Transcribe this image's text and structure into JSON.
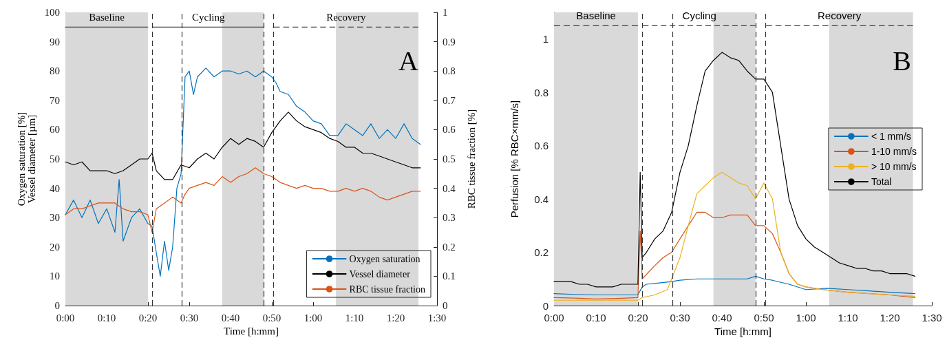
{
  "chart_data": [
    {
      "type": "line",
      "xlabel": "Time [h:mm]",
      "ylabel": "Oxygen saturation [%]\nVessel diameter [µm]",
      "y2label": "RBC tissue fraction [%]",
      "xlim": [
        0,
        1.5
      ],
      "xticks": [
        {
          "value": 0,
          "label": "0:00"
        },
        {
          "value": 0.1667,
          "label": "0:10"
        },
        {
          "value": 0.3333,
          "label": "0:20"
        },
        {
          "value": 0.5,
          "label": "0:30"
        },
        {
          "value": 0.6667,
          "label": "0:40"
        },
        {
          "value": 0.8333,
          "label": "0:50"
        },
        {
          "value": 1,
          "label": "1:00"
        },
        {
          "value": 1.1667,
          "label": "1:10"
        },
        {
          "value": 1.3333,
          "label": "1:20"
        },
        {
          "value": 1.5,
          "label": "1:30"
        }
      ],
      "ylim": [
        0,
        100
      ],
      "yticks": [
        0,
        10,
        20,
        30,
        40,
        50,
        60,
        70,
        80,
        90,
        100
      ],
      "y2lim": [
        0,
        1
      ],
      "y2ticks": [
        0,
        0.1,
        0.2,
        0.3,
        0.4,
        0.5,
        0.6,
        0.7,
        0.8,
        0.9,
        1
      ],
      "legend": "bottom right",
      "bands": [
        {
          "axis": "x",
          "from": 0,
          "to": 0.333,
          "color": "#d9d9d9"
        },
        {
          "axis": "x",
          "from": 0.633,
          "to": 0.8,
          "color": "#d9d9d9"
        },
        {
          "axis": "x",
          "from": 1.092,
          "to": 1.425,
          "color": "#d9d9d9"
        }
      ],
      "ref_lines": [
        {
          "axis": "x",
          "value": 0.353,
          "line_style": "dashed",
          "color": "#333333"
        },
        {
          "axis": "x",
          "value": 0.467,
          "line_style": "dashed",
          "color": "#333333"
        },
        {
          "axis": "x",
          "value": 0.8,
          "line_style": "dashed",
          "color": "#333333"
        },
        {
          "axis": "x",
          "value": 0.842,
          "line_style": "dashed",
          "color": "#333333"
        }
      ],
      "annotations": [
        "A",
        {
          "text": "Baseline",
          "x": 0.167,
          "y": 95
        },
        {
          "text": "Cycling",
          "x": 0.577,
          "y": 95
        },
        {
          "text": "Recovery",
          "x": 1.133,
          "y": 95
        }
      ],
      "series": [
        {
          "name": "Oxygen saturation",
          "color": "#0072bd",
          "x": [
            0,
            0.033,
            0.067,
            0.1,
            0.133,
            0.167,
            0.2,
            0.217,
            0.233,
            0.267,
            0.3,
            0.333,
            0.35,
            0.367,
            0.383,
            0.4,
            0.417,
            0.433,
            0.45,
            0.467,
            0.483,
            0.5,
            0.517,
            0.533,
            0.567,
            0.6,
            0.633,
            0.667,
            0.7,
            0.733,
            0.767,
            0.8,
            0.833,
            0.85,
            0.867,
            0.9,
            0.933,
            0.967,
            1,
            1.033,
            1.067,
            1.1,
            1.133,
            1.167,
            1.2,
            1.233,
            1.267,
            1.3,
            1.333,
            1.367,
            1.4,
            1.433
          ],
          "values": [
            31,
            36,
            30,
            36,
            28,
            33,
            25,
            43,
            22,
            30,
            33,
            28,
            27,
            18,
            10,
            22,
            12,
            20,
            40,
            45,
            78,
            80,
            72,
            78,
            81,
            78,
            80,
            80,
            79,
            80,
            78,
            80,
            78,
            76,
            73,
            72,
            68,
            66,
            63,
            62,
            58,
            58,
            62,
            60,
            58,
            62,
            57,
            60,
            57,
            62,
            57,
            55
          ]
        },
        {
          "name": "Vessel diameter",
          "color": "#000000",
          "x": [
            0,
            0.033,
            0.067,
            0.1,
            0.133,
            0.167,
            0.2,
            0.233,
            0.267,
            0.3,
            0.333,
            0.35,
            0.367,
            0.4,
            0.433,
            0.467,
            0.5,
            0.533,
            0.567,
            0.6,
            0.633,
            0.667,
            0.7,
            0.733,
            0.767,
            0.8,
            0.833,
            0.867,
            0.9,
            0.933,
            0.967,
            1,
            1.033,
            1.067,
            1.1,
            1.133,
            1.167,
            1.2,
            1.233,
            1.267,
            1.3,
            1.333,
            1.367,
            1.4,
            1.433
          ],
          "values": [
            49,
            48,
            49,
            46,
            46,
            46,
            45,
            46,
            48,
            50,
            50,
            52,
            46,
            43,
            43,
            48,
            47,
            50,
            52,
            50,
            54,
            57,
            55,
            57,
            56,
            54,
            59,
            63,
            66,
            63,
            61,
            60,
            59,
            57,
            56,
            54,
            54,
            52,
            52,
            51,
            50,
            49,
            48,
            47,
            47
          ]
        },
        {
          "name": "RBC tissue fraction",
          "color": "#d95319",
          "axis": "y2",
          "x": [
            0,
            0.033,
            0.067,
            0.1,
            0.133,
            0.167,
            0.2,
            0.233,
            0.267,
            0.3,
            0.333,
            0.35,
            0.367,
            0.4,
            0.433,
            0.467,
            0.483,
            0.5,
            0.533,
            0.567,
            0.6,
            0.633,
            0.667,
            0.7,
            0.733,
            0.767,
            0.8,
            0.833,
            0.867,
            0.9,
            0.933,
            0.967,
            1,
            1.033,
            1.067,
            1.1,
            1.133,
            1.167,
            1.2,
            1.233,
            1.267,
            1.3,
            1.333,
            1.367,
            1.4,
            1.433
          ],
          "values": [
            0.31,
            0.33,
            0.33,
            0.34,
            0.35,
            0.35,
            0.35,
            0.33,
            0.32,
            0.32,
            0.31,
            0.25,
            0.33,
            0.35,
            0.37,
            0.35,
            0.38,
            0.4,
            0.41,
            0.42,
            0.41,
            0.44,
            0.42,
            0.44,
            0.45,
            0.47,
            0.45,
            0.44,
            0.42,
            0.41,
            0.4,
            0.41,
            0.4,
            0.4,
            0.39,
            0.39,
            0.4,
            0.39,
            0.4,
            0.39,
            0.37,
            0.36,
            0.37,
            0.38,
            0.39,
            0.39
          ]
        },
        {
          "color": "#404040",
          "x": [
            0,
            0.333
          ],
          "values": [
            95,
            95
          ]
        },
        {
          "color": "#404040",
          "x": [
            0.353,
            0.8
          ],
          "values": [
            95,
            95
          ]
        },
        {
          "color": "#404040",
          "line_style": "dashed",
          "x": [
            0.842,
            1.425
          ],
          "values": [
            95,
            95
          ]
        }
      ]
    },
    {
      "type": "line",
      "xlabel": "Time [h:mm]",
      "ylabel": "Perfusion [% RBC×mm/s]",
      "xlim": [
        0,
        1.5
      ],
      "xticks": [
        {
          "value": 0,
          "label": "0:00"
        },
        {
          "value": 0.1667,
          "label": "0:10"
        },
        {
          "value": 0.3333,
          "label": "0:20"
        },
        {
          "value": 0.5,
          "label": "0:30"
        },
        {
          "value": 0.6667,
          "label": "0:40"
        },
        {
          "value": 0.8333,
          "label": "0:50"
        },
        {
          "value": 1,
          "label": "1:00"
        },
        {
          "value": 1.1667,
          "label": "1:10"
        },
        {
          "value": 1.3333,
          "label": "1:20"
        },
        {
          "value": 1.5,
          "label": "1:30"
        }
      ],
      "ylim": [
        0,
        1.1
      ],
      "yticks": [
        0,
        0.2,
        0.4,
        0.6,
        0.8,
        1
      ],
      "legend": "right",
      "bands": [
        {
          "axis": "x",
          "from": 0,
          "to": 0.333,
          "color": "#d9d9d9"
        },
        {
          "axis": "x",
          "from": 0.633,
          "to": 0.8,
          "color": "#d9d9d9"
        },
        {
          "axis": "x",
          "from": 1.092,
          "to": 1.425,
          "color": "#d9d9d9"
        }
      ],
      "ref_lines": [
        {
          "axis": "x",
          "value": 0.353,
          "line_style": "dashed",
          "color": "#333333"
        },
        {
          "axis": "x",
          "value": 0.467,
          "line_style": "dashed",
          "color": "#333333"
        },
        {
          "axis": "x",
          "value": 0.8,
          "line_style": "dashed",
          "color": "#333333"
        },
        {
          "axis": "x",
          "value": 0.842,
          "line_style": "dashed",
          "color": "#333333"
        }
      ],
      "annotations": [
        "B",
        {
          "text": "Baseline",
          "x": 0.167,
          "y": 1.05
        },
        {
          "text": "Cycling",
          "x": 0.577,
          "y": 1.05
        },
        {
          "text": "Recovery",
          "x": 1.133,
          "y": 1.05
        }
      ],
      "series": [
        {
          "name": "< 1 mm/s",
          "color": "#0072bd",
          "x": [
            0,
            0.083,
            0.167,
            0.25,
            0.333,
            0.35,
            0.367,
            0.417,
            0.467,
            0.5,
            0.567,
            0.633,
            0.7,
            0.767,
            0.8,
            0.833,
            0.867,
            0.933,
            1,
            1.083,
            1.167,
            1.25,
            1.333,
            1.433
          ],
          "values": [
            0.045,
            0.042,
            0.04,
            0.04,
            0.04,
            0.07,
            0.08,
            0.085,
            0.09,
            0.095,
            0.1,
            0.1,
            0.1,
            0.1,
            0.11,
            0.1,
            0.095,
            0.08,
            0.06,
            0.065,
            0.06,
            0.055,
            0.05,
            0.045
          ]
        },
        {
          "name": "1-10 mm/s",
          "color": "#d95319",
          "x": [
            0,
            0.083,
            0.167,
            0.25,
            0.333,
            0.342,
            0.35,
            0.4,
            0.433,
            0.467,
            0.5,
            0.533,
            0.567,
            0.6,
            0.633,
            0.667,
            0.7,
            0.733,
            0.767,
            0.8,
            0.833,
            0.867,
            0.9,
            0.933,
            0.967,
            1,
            1.067,
            1.167,
            1.333,
            1.433
          ],
          "values": [
            0.03,
            0.028,
            0.025,
            0.027,
            0.03,
            0.28,
            0.1,
            0.15,
            0.18,
            0.2,
            0.25,
            0.3,
            0.35,
            0.35,
            0.33,
            0.33,
            0.34,
            0.34,
            0.34,
            0.3,
            0.3,
            0.27,
            0.2,
            0.12,
            0.08,
            0.07,
            0.06,
            0.05,
            0.04,
            0.03
          ]
        },
        {
          "name": "> 10 mm/s",
          "color": "#edb120",
          "x": [
            0,
            0.083,
            0.167,
            0.25,
            0.333,
            0.35,
            0.4,
            0.45,
            0.467,
            0.5,
            0.533,
            0.567,
            0.6,
            0.633,
            0.667,
            0.7,
            0.733,
            0.767,
            0.8,
            0.833,
            0.867,
            0.9,
            0.933,
            0.967,
            1,
            1.067,
            1.167,
            1.333,
            1.433
          ],
          "values": [
            0.02,
            0.02,
            0.02,
            0.02,
            0.02,
            0.03,
            0.04,
            0.06,
            0.1,
            0.18,
            0.3,
            0.42,
            0.45,
            0.48,
            0.5,
            0.48,
            0.46,
            0.45,
            0.4,
            0.46,
            0.4,
            0.2,
            0.12,
            0.08,
            0.07,
            0.06,
            0.05,
            0.04,
            0.035
          ]
        },
        {
          "name": "Total",
          "color": "#000000",
          "x": [
            0,
            0.033,
            0.067,
            0.1,
            0.133,
            0.167,
            0.2,
            0.233,
            0.267,
            0.3,
            0.333,
            0.342,
            0.35,
            0.367,
            0.4,
            0.433,
            0.467,
            0.5,
            0.533,
            0.567,
            0.6,
            0.633,
            0.667,
            0.7,
            0.733,
            0.767,
            0.8,
            0.833,
            0.867,
            0.9,
            0.933,
            0.967,
            1,
            1.033,
            1.067,
            1.1,
            1.133,
            1.167,
            1.2,
            1.233,
            1.267,
            1.3,
            1.333,
            1.367,
            1.4,
            1.433
          ],
          "values": [
            0.09,
            0.09,
            0.09,
            0.08,
            0.08,
            0.07,
            0.07,
            0.07,
            0.08,
            0.08,
            0.08,
            0.5,
            0.18,
            0.2,
            0.25,
            0.28,
            0.35,
            0.5,
            0.6,
            0.75,
            0.88,
            0.92,
            0.95,
            0.93,
            0.92,
            0.88,
            0.85,
            0.85,
            0.8,
            0.6,
            0.4,
            0.3,
            0.25,
            0.22,
            0.2,
            0.18,
            0.16,
            0.15,
            0.14,
            0.14,
            0.13,
            0.13,
            0.12,
            0.12,
            0.12,
            0.11
          ]
        },
        {
          "color": "#404040",
          "line_style": "dashed",
          "x": [
            0,
            0.333
          ],
          "values": [
            1.05,
            1.05
          ]
        },
        {
          "color": "#404040",
          "line_style": "dashed",
          "x": [
            0.353,
            0.8
          ],
          "values": [
            1.05,
            1.05
          ]
        },
        {
          "color": "#404040",
          "line_style": "dashed",
          "x": [
            0.842,
            1.425
          ],
          "values": [
            1.05,
            1.05
          ]
        }
      ]
    }
  ]
}
